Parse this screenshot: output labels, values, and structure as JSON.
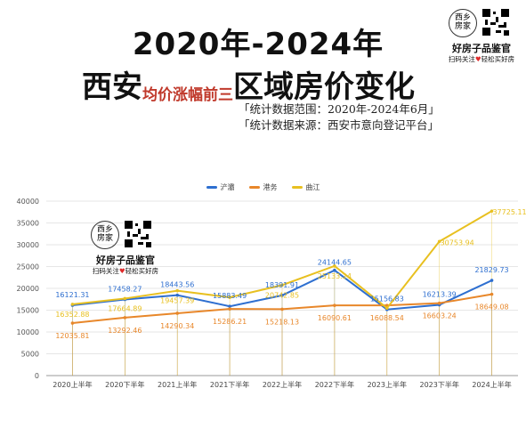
{
  "header": {
    "title_line1": "2020年-2024年",
    "title_line2_a": "西安",
    "title_line2_b": "均价涨幅前三",
    "title_line2_c": "区域房价变化",
    "note1": "「统计数据范围：2020年-2024年6月」",
    "note2": "「统计数据来源：西安市意向登记平台」"
  },
  "brand": {
    "logo_text": "西乡房家",
    "name": "好房子品鉴官",
    "slogan_a": "扫码关注",
    "slogan_heart": "♥",
    "slogan_b": "轻松买好房"
  },
  "colors": {
    "series1": "#2e6fd0",
    "series2": "#e8872a",
    "series3": "#e8c020",
    "heart": "#e02a2a"
  },
  "chart_data": {
    "type": "line",
    "categories": [
      "2020上半年",
      "2020下半年",
      "2021上半年",
      "2021下半年",
      "2022上半年",
      "2022下半年",
      "2023上半年",
      "2023下半年",
      "2024上半年"
    ],
    "series": [
      {
        "name": "浐灞",
        "values": [
          16121.31,
          17458.27,
          18443.56,
          15883.49,
          18391.91,
          24144.65,
          15156.83,
          16213.39,
          21829.73
        ]
      },
      {
        "name": "港务",
        "values": [
          12035.81,
          13292.46,
          14290.34,
          15286.21,
          15218.13,
          16090.61,
          16088.54,
          16603.24,
          18649.08
        ]
      },
      {
        "name": "曲江",
        "values": [
          16352.88,
          17664.89,
          19457.39,
          17942.17,
          20742.85,
          25133.24,
          15470.6,
          30753.94,
          37725.11
        ]
      }
    ],
    "labels": [
      [
        "16121.31",
        "17458.27",
        "18443.56",
        "15883.49",
        "18391.91",
        "24144.65",
        "15156.83",
        "16213.39",
        "21829.73"
      ],
      [
        "12035.81",
        "13292.46",
        "14290.34",
        "15286.21",
        "15218.13",
        "16090.61",
        "16088.54",
        "16603.24",
        "18649.08"
      ],
      [
        "16352.88",
        "17664.89",
        "19457.39",
        "",
        "20742.85",
        "25133.24",
        "",
        "30753.94",
        "37725.11"
      ]
    ],
    "ylim": [
      0,
      40000
    ],
    "yticks": [
      "0",
      "5000",
      "10000",
      "15000",
      "20000",
      "25000",
      "30000",
      "35000",
      "40000"
    ],
    "grid": true,
    "legend_position": "top-center"
  }
}
